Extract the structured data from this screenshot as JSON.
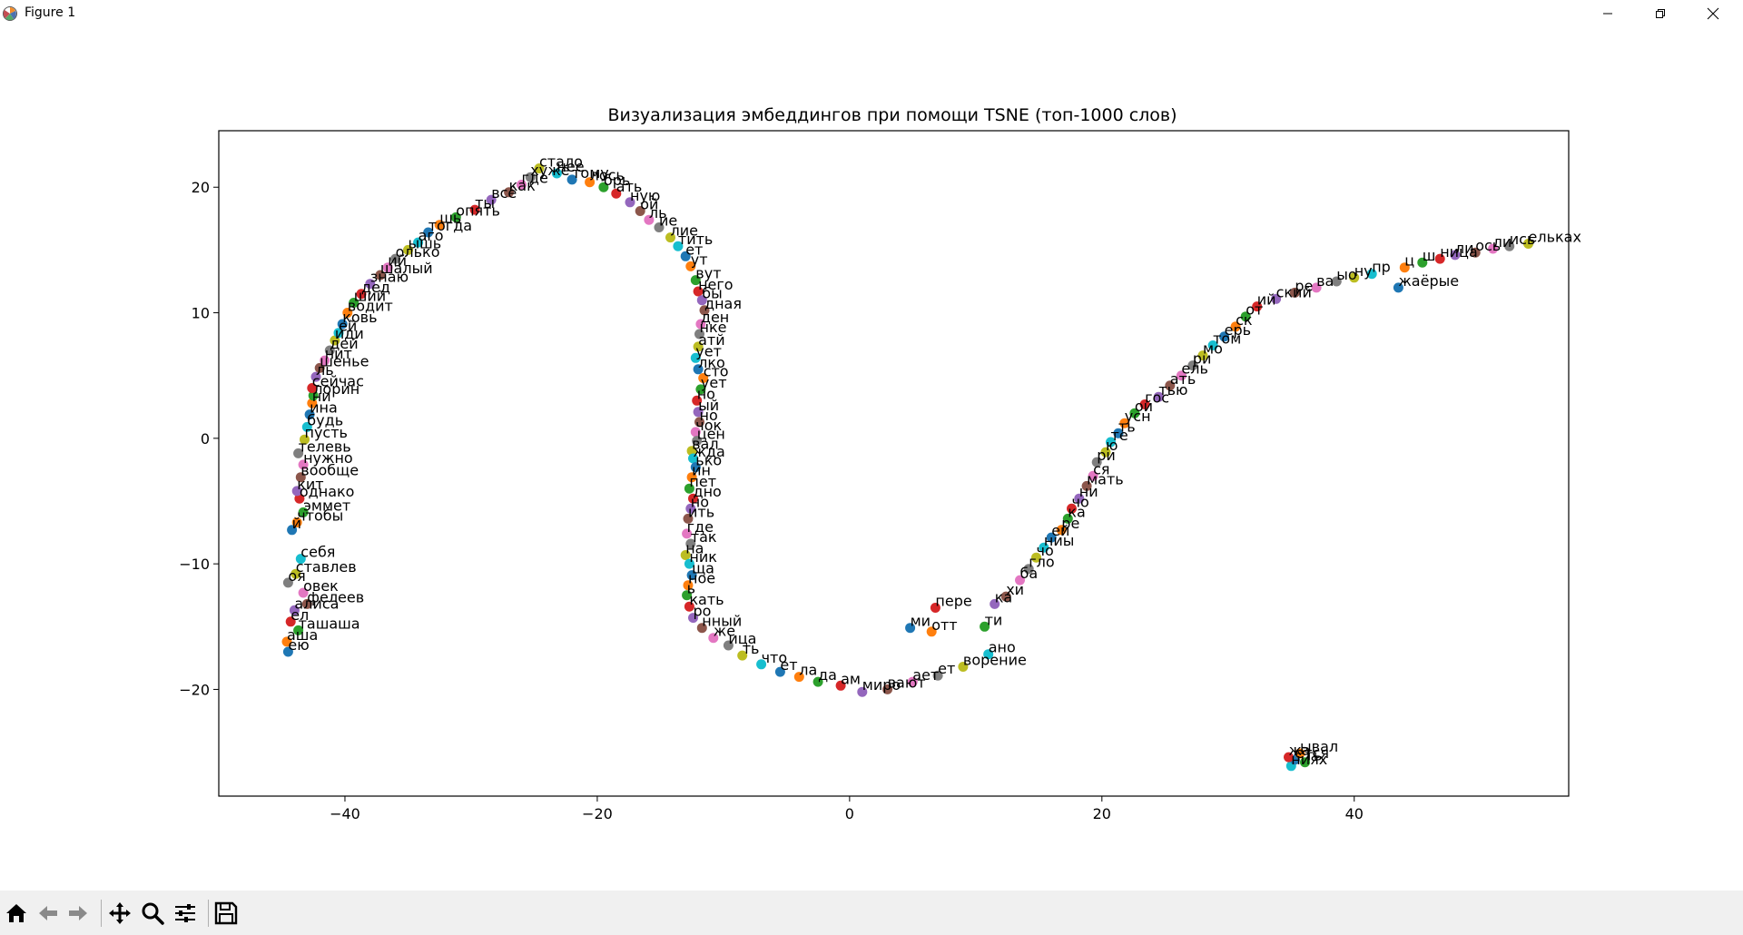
{
  "window": {
    "title": "Figure 1",
    "icon": "matplotlib-logo-icon",
    "controls": [
      "minimize-icon",
      "maximize-icon",
      "close-icon"
    ]
  },
  "toolbar": {
    "buttons": [
      {
        "name": "home-button",
        "icon": "home-icon"
      },
      {
        "name": "back-button",
        "icon": "arrow-left-icon"
      },
      {
        "name": "forward-button",
        "icon": "arrow-right-icon"
      },
      {
        "name": "pan-button",
        "icon": "move-icon"
      },
      {
        "name": "zoom-button",
        "icon": "magnifier-icon"
      },
      {
        "name": "subplots-button",
        "icon": "sliders-icon"
      },
      {
        "name": "save-button",
        "icon": "floppy-disk-icon"
      }
    ]
  },
  "chart_data": {
    "type": "scatter",
    "title": "Визуализация эмбеддингов при помощи TSNE (топ-1000 слов)",
    "xlabel": "",
    "ylabel": "",
    "xlim": [
      -50,
      57
    ],
    "ylim": [
      -28.5,
      24.5
    ],
    "xticks": [
      -40,
      -20,
      0,
      20,
      40
    ],
    "yticks": [
      -20,
      -10,
      0,
      10,
      20
    ],
    "grid": false,
    "legend": "none",
    "colors": [
      "#1f77b4",
      "#ff7f0e",
      "#2ca02c",
      "#d62728",
      "#9467bd",
      "#8c564b",
      "#e377c2",
      "#7f7f7f",
      "#bcbd22",
      "#17becf"
    ],
    "points": [
      {
        "x": -44.5,
        "y": -17.0,
        "label": "ею"
      },
      {
        "x": -44.6,
        "y": -16.2,
        "label": "аша"
      },
      {
        "x": -43.7,
        "y": -15.3,
        "label": "ташаша"
      },
      {
        "x": -44.3,
        "y": -14.6,
        "label": "ел"
      },
      {
        "x": -44.0,
        "y": -13.7,
        "label": "алиса"
      },
      {
        "x": -43.0,
        "y": -13.2,
        "label": "фелеев"
      },
      {
        "x": -43.3,
        "y": -12.3,
        "label": "овек"
      },
      {
        "x": -44.5,
        "y": -11.5,
        "label": "оя"
      },
      {
        "x": -43.9,
        "y": -10.8,
        "label": "ставлев"
      },
      {
        "x": -43.5,
        "y": -9.6,
        "label": "себя"
      },
      {
        "x": -44.2,
        "y": -7.3,
        "label": "й"
      },
      {
        "x": -43.8,
        "y": -6.7,
        "label": "чтобы"
      },
      {
        "x": -43.3,
        "y": -5.9,
        "label": "эммет"
      },
      {
        "x": -43.6,
        "y": -4.8,
        "label": "однако"
      },
      {
        "x": -43.8,
        "y": -4.2,
        "label": "кит"
      },
      {
        "x": -43.5,
        "y": -3.1,
        "label": "вообще"
      },
      {
        "x": -43.3,
        "y": -2.1,
        "label": "нужно"
      },
      {
        "x": -43.7,
        "y": -1.2,
        "label": "телевь"
      },
      {
        "x": -43.2,
        "y": -0.1,
        "label": "пусть"
      },
      {
        "x": -43.0,
        "y": 0.9,
        "label": "будь"
      },
      {
        "x": -42.8,
        "y": 1.9,
        "label": "ина"
      },
      {
        "x": -42.6,
        "y": 2.8,
        "label": "ни"
      },
      {
        "x": -42.5,
        "y": 3.4,
        "label": "лорин"
      },
      {
        "x": -42.6,
        "y": 4.0,
        "label": "сейчас"
      },
      {
        "x": -42.3,
        "y": 4.9,
        "label": "ль"
      },
      {
        "x": -42.0,
        "y": 5.6,
        "label": "шенье"
      },
      {
        "x": -41.6,
        "y": 6.2,
        "label": "нит"
      },
      {
        "x": -41.2,
        "y": 7.0,
        "label": "дей"
      },
      {
        "x": -40.8,
        "y": 7.8,
        "label": "иди"
      },
      {
        "x": -40.5,
        "y": 8.4,
        "label": "ей"
      },
      {
        "x": -40.2,
        "y": 9.1,
        "label": "ковь"
      },
      {
        "x": -39.8,
        "y": 10.0,
        "label": "водит"
      },
      {
        "x": -39.3,
        "y": 10.8,
        "label": "ший"
      },
      {
        "x": -38.7,
        "y": 11.5,
        "label": "дед"
      },
      {
        "x": -38.0,
        "y": 12.3,
        "label": "знаю"
      },
      {
        "x": -37.2,
        "y": 13.0,
        "label": "шалый"
      },
      {
        "x": -36.6,
        "y": 13.6,
        "label": "ий"
      },
      {
        "x": -36.0,
        "y": 14.3,
        "label": "олько"
      },
      {
        "x": -35.0,
        "y": 15.0,
        "label": "ышь"
      },
      {
        "x": -34.2,
        "y": 15.6,
        "label": "аго"
      },
      {
        "x": -33.4,
        "y": 16.4,
        "label": "тогда"
      },
      {
        "x": -32.5,
        "y": 17.0,
        "label": "шь"
      },
      {
        "x": -31.2,
        "y": 17.6,
        "label": "опять"
      },
      {
        "x": -29.7,
        "y": 18.2,
        "label": "ты"
      },
      {
        "x": -28.4,
        "y": 19.0,
        "label": "всё"
      },
      {
        "x": -27.0,
        "y": 19.6,
        "label": "как"
      },
      {
        "x": -26.0,
        "y": 20.2,
        "label": "где"
      },
      {
        "x": -25.3,
        "y": 20.8,
        "label": "хуже"
      },
      {
        "x": -24.6,
        "y": 21.5,
        "label": "стало"
      },
      {
        "x": -23.2,
        "y": 21.1,
        "label": "нее"
      },
      {
        "x": -22.0,
        "y": 20.6,
        "label": "тому"
      },
      {
        "x": -20.6,
        "y": 20.4,
        "label": "лось"
      },
      {
        "x": -19.5,
        "y": 20.0,
        "label": "брь"
      },
      {
        "x": -18.5,
        "y": 19.5,
        "label": "ать"
      },
      {
        "x": -17.4,
        "y": 18.8,
        "label": "ную"
      },
      {
        "x": -16.6,
        "y": 18.1,
        "label": "ой"
      },
      {
        "x": -15.9,
        "y": 17.4,
        "label": "ль"
      },
      {
        "x": -15.1,
        "y": 16.8,
        "label": "ие"
      },
      {
        "x": -14.2,
        "y": 16.0,
        "label": "лие"
      },
      {
        "x": -13.6,
        "y": 15.3,
        "label": "тить"
      },
      {
        "x": -13.0,
        "y": 14.5,
        "label": "ет"
      },
      {
        "x": -12.6,
        "y": 13.7,
        "label": "ут"
      },
      {
        "x": -12.2,
        "y": 12.6,
        "label": "вут"
      },
      {
        "x": -12.0,
        "y": 11.7,
        "label": "него"
      },
      {
        "x": -11.7,
        "y": 11.0,
        "label": "бы"
      },
      {
        "x": -11.5,
        "y": 10.2,
        "label": "дная"
      },
      {
        "x": -11.8,
        "y": 9.1,
        "label": "ден"
      },
      {
        "x": -11.9,
        "y": 8.3,
        "label": "нке"
      },
      {
        "x": -12.0,
        "y": 7.3,
        "label": "атй"
      },
      {
        "x": -12.2,
        "y": 6.4,
        "label": "ует"
      },
      {
        "x": -12.0,
        "y": 5.5,
        "label": "лко"
      },
      {
        "x": -11.6,
        "y": 4.8,
        "label": "сто"
      },
      {
        "x": -11.8,
        "y": 3.9,
        "label": "ует"
      },
      {
        "x": -12.1,
        "y": 3.0,
        "label": "но"
      },
      {
        "x": -12.0,
        "y": 2.1,
        "label": "ый"
      },
      {
        "x": -11.9,
        "y": 1.3,
        "label": "но"
      },
      {
        "x": -12.2,
        "y": 0.5,
        "label": "чок"
      },
      {
        "x": -12.1,
        "y": -0.2,
        "label": "цен"
      },
      {
        "x": -12.5,
        "y": -1.0,
        "label": "вал"
      },
      {
        "x": -12.4,
        "y": -1.6,
        "label": "жда"
      },
      {
        "x": -12.2,
        "y": -2.3,
        "label": "ько"
      },
      {
        "x": -12.5,
        "y": -3.1,
        "label": "ин"
      },
      {
        "x": -12.7,
        "y": -4.0,
        "label": "пет"
      },
      {
        "x": -12.4,
        "y": -4.8,
        "label": "дно"
      },
      {
        "x": -12.6,
        "y": -5.6,
        "label": "но"
      },
      {
        "x": -12.8,
        "y": -6.4,
        "label": "ить"
      },
      {
        "x": -12.9,
        "y": -7.6,
        "label": "где"
      },
      {
        "x": -12.6,
        "y": -8.4,
        "label": "так"
      },
      {
        "x": -13.0,
        "y": -9.3,
        "label": "на"
      },
      {
        "x": -12.7,
        "y": -10.0,
        "label": "ник"
      },
      {
        "x": -12.5,
        "y": -10.9,
        "label": "ща"
      },
      {
        "x": -12.8,
        "y": -11.7,
        "label": "ное"
      },
      {
        "x": -12.9,
        "y": -12.5,
        "label": "ь"
      },
      {
        "x": -12.7,
        "y": -13.4,
        "label": "кать"
      },
      {
        "x": -12.4,
        "y": -14.3,
        "label": "ро"
      },
      {
        "x": -11.7,
        "y": -15.1,
        "label": "нный"
      },
      {
        "x": -10.8,
        "y": -15.9,
        "label": "же"
      },
      {
        "x": -9.6,
        "y": -16.5,
        "label": "ица"
      },
      {
        "x": -8.5,
        "y": -17.3,
        "label": "ть"
      },
      {
        "x": -7.0,
        "y": -18.0,
        "label": "что"
      },
      {
        "x": -5.5,
        "y": -18.6,
        "label": "ет"
      },
      {
        "x": -4.0,
        "y": -19.0,
        "label": "ла"
      },
      {
        "x": -2.5,
        "y": -19.4,
        "label": "да"
      },
      {
        "x": -0.7,
        "y": -19.7,
        "label": "ам"
      },
      {
        "x": 1.0,
        "y": -20.2,
        "label": "миро"
      },
      {
        "x": 3.0,
        "y": -20.0,
        "label": "вают"
      },
      {
        "x": 5.0,
        "y": -19.4,
        "label": "ает"
      },
      {
        "x": 7.0,
        "y": -18.9,
        "label": "ет"
      },
      {
        "x": 9.0,
        "y": -18.2,
        "label": "ворение"
      },
      {
        "x": 11.0,
        "y": -17.2,
        "label": "ано"
      },
      {
        "x": 4.8,
        "y": -15.1,
        "label": "ми"
      },
      {
        "x": 6.5,
        "y": -15.4,
        "label": "отт"
      },
      {
        "x": 10.7,
        "y": -15.0,
        "label": "ти"
      },
      {
        "x": 6.8,
        "y": -13.5,
        "label": "пере"
      },
      {
        "x": 11.5,
        "y": -13.2,
        "label": "ка"
      },
      {
        "x": 12.4,
        "y": -12.6,
        "label": "хи"
      },
      {
        "x": 13.5,
        "y": -11.3,
        "label": "ба"
      },
      {
        "x": 14.2,
        "y": -10.4,
        "label": "гло"
      },
      {
        "x": 14.8,
        "y": -9.5,
        "label": "чо"
      },
      {
        "x": 15.4,
        "y": -8.7,
        "label": "ниы"
      },
      {
        "x": 16.0,
        "y": -7.9,
        "label": "ей"
      },
      {
        "x": 16.8,
        "y": -7.3,
        "label": "ре"
      },
      {
        "x": 17.3,
        "y": -6.4,
        "label": "ка"
      },
      {
        "x": 17.6,
        "y": -5.6,
        "label": "чо"
      },
      {
        "x": 18.2,
        "y": -4.8,
        "label": "ни"
      },
      {
        "x": 18.8,
        "y": -3.8,
        "label": "мать"
      },
      {
        "x": 19.3,
        "y": -3.0,
        "label": "ся"
      },
      {
        "x": 19.6,
        "y": -1.9,
        "label": "ри"
      },
      {
        "x": 20.3,
        "y": -1.1,
        "label": "ю"
      },
      {
        "x": 20.7,
        "y": -0.3,
        "label": "те"
      },
      {
        "x": 21.3,
        "y": 0.4,
        "label": "ть"
      },
      {
        "x": 21.8,
        "y": 1.2,
        "label": "усн"
      },
      {
        "x": 22.6,
        "y": 2.0,
        "label": "ой"
      },
      {
        "x": 23.4,
        "y": 2.7,
        "label": "гос"
      },
      {
        "x": 24.5,
        "y": 3.3,
        "label": "тью"
      },
      {
        "x": 25.4,
        "y": 4.2,
        "label": "ать"
      },
      {
        "x": 26.3,
        "y": 5.0,
        "label": "ель"
      },
      {
        "x": 27.2,
        "y": 5.8,
        "label": "ри"
      },
      {
        "x": 28.0,
        "y": 6.6,
        "label": "мо"
      },
      {
        "x": 28.8,
        "y": 7.4,
        "label": "том"
      },
      {
        "x": 29.7,
        "y": 8.1,
        "label": "ерь"
      },
      {
        "x": 30.6,
        "y": 8.9,
        "label": "ск"
      },
      {
        "x": 31.4,
        "y": 9.7,
        "label": "от"
      },
      {
        "x": 32.3,
        "y": 10.5,
        "label": "ий"
      },
      {
        "x": 33.8,
        "y": 11.1,
        "label": "ский"
      },
      {
        "x": 35.3,
        "y": 11.6,
        "label": "ре"
      },
      {
        "x": 37.0,
        "y": 12.0,
        "label": "ва"
      },
      {
        "x": 38.6,
        "y": 12.5,
        "label": "ыо"
      },
      {
        "x": 40.0,
        "y": 12.8,
        "label": "ну"
      },
      {
        "x": 41.4,
        "y": 13.1,
        "label": "пр"
      },
      {
        "x": 43.5,
        "y": 12.0,
        "label": "жаёрые"
      },
      {
        "x": 44.0,
        "y": 13.6,
        "label": "ц"
      },
      {
        "x": 45.4,
        "y": 14.0,
        "label": "ш"
      },
      {
        "x": 46.8,
        "y": 14.3,
        "label": "ница"
      },
      {
        "x": 48.0,
        "y": 14.6,
        "label": "ли"
      },
      {
        "x": 49.6,
        "y": 14.8,
        "label": "ось"
      },
      {
        "x": 51.0,
        "y": 15.1,
        "label": "ли"
      },
      {
        "x": 52.3,
        "y": 15.3,
        "label": "ись"
      },
      {
        "x": 53.8,
        "y": 15.5,
        "label": "ельках"
      },
      {
        "x": 35.0,
        "y": -26.1,
        "label": "ниях"
      },
      {
        "x": 35.3,
        "y": -25.6,
        "label": "ется"
      },
      {
        "x": 35.7,
        "y": -25.1,
        "label": "ывал"
      },
      {
        "x": 36.1,
        "y": -25.8,
        "label": "ть"
      },
      {
        "x": 34.8,
        "y": -25.4,
        "label": "жа"
      }
    ]
  }
}
